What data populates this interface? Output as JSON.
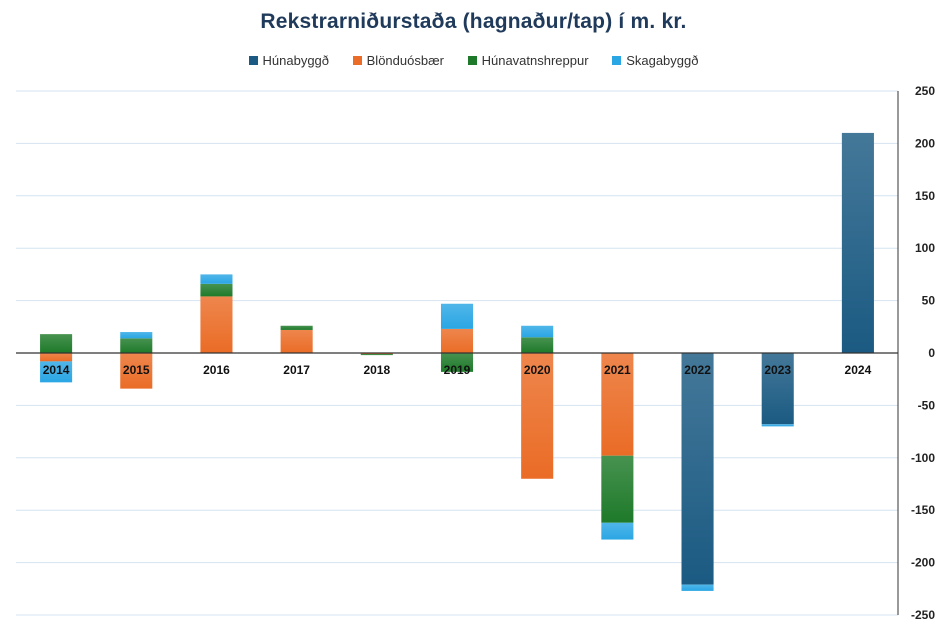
{
  "chart_data": {
    "type": "bar",
    "stacked": true,
    "title": "Rekstrarniðurstaða (hagnaður/tap) í m. kr.",
    "xlabel": "",
    "ylabel": "",
    "ylim": [
      -250,
      250
    ],
    "yticks": [
      250,
      200,
      150,
      100,
      50,
      0,
      -50,
      -100,
      -150,
      -200,
      -250
    ],
    "y_axis_side": "right",
    "grid": true,
    "legend_position": "top",
    "categories": [
      "2014",
      "2015",
      "2016",
      "2017",
      "2018",
      "2019",
      "2020",
      "2021",
      "2022",
      "2023",
      "2024"
    ],
    "series": [
      {
        "name": "Húnabyggð",
        "color": "#1b5a82",
        "values": [
          0,
          0,
          0,
          0,
          0,
          0,
          0,
          0,
          -221,
          -68,
          210
        ]
      },
      {
        "name": "Blönduósbær",
        "color": "#ea6c26",
        "values": [
          -8,
          -34,
          54,
          22,
          -1,
          23,
          -120,
          -98,
          0,
          0,
          0
        ]
      },
      {
        "name": "Húnavatnshreppur",
        "color": "#1e7a2a",
        "values": [
          18,
          14,
          12,
          4,
          -1,
          -18,
          15,
          -64,
          0,
          0,
          0
        ]
      },
      {
        "name": "Skagabyggð",
        "color": "#2aa6e4",
        "values": [
          -20,
          6,
          9,
          0,
          0,
          24,
          11,
          -16,
          -6,
          -2,
          0
        ]
      }
    ]
  }
}
